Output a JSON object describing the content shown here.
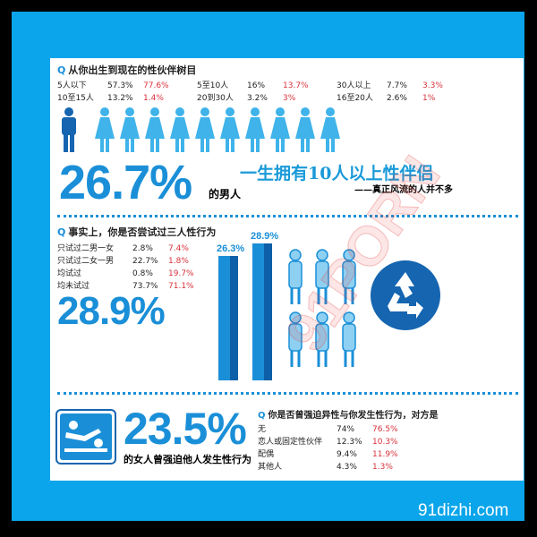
{
  "q1": {
    "title": "从你出生到现在的性伙伴树目",
    "q_mark": "Q",
    "rows": [
      [
        [
          "5人以下",
          "57.3%",
          "77.6%"
        ],
        [
          "5至10人",
          "16%",
          "13.7%"
        ],
        [
          "30人以上",
          "7.7%",
          "3.3%"
        ]
      ],
      [
        [
          "10至15人",
          "13.2%",
          "1.4%"
        ],
        [
          "20到30人",
          "3.2%",
          "3%"
        ],
        [
          "16至20人",
          "2.6%",
          "1%"
        ]
      ]
    ]
  },
  "headline1": {
    "value": "26.7%",
    "suffix": "的男人",
    "slogan": "一生拥有10人以上性伴侣",
    "subline": "——真正风流的人并不多"
  },
  "q2": {
    "title": "事实上，你是否尝试过三人性行为",
    "q_mark": "Q",
    "rows": [
      [
        "只试过二男一女",
        "2.8%",
        "7.4%"
      ],
      [
        "只试过二女一男",
        "22.7%",
        "1.8%"
      ],
      [
        "均试过",
        "0.8%",
        "19.7%"
      ],
      [
        "均未试过",
        "73.7%",
        "71.1%"
      ]
    ]
  },
  "headline2": {
    "value": "28.9%"
  },
  "bars": [
    {
      "label": "26.3%",
      "value": 26.3
    },
    {
      "label": "28.9%",
      "value": 28.9
    }
  ],
  "q3": {
    "title": "你是否曾强迫异性与你发生性行为，对方是",
    "q_mark": "Q",
    "rows": [
      [
        "无",
        "74%",
        "76.5%"
      ],
      [
        "恋人或固定性伙伴",
        "12.3%",
        "10.3%"
      ],
      [
        "配偶",
        "9.4%",
        "11.9%"
      ],
      [
        "其他人",
        "4.3%",
        "1.3%"
      ]
    ]
  },
  "headline3": {
    "value": "23.5%",
    "subline": "的女人曾强迫他人发生性行为"
  },
  "watermark": "91PORN",
  "footer": {
    "site": "91dizhi.com"
  },
  "colors": {
    "frame": "#0aa5ea",
    "accent": "#1a8fd8",
    "dark": "#1565b0",
    "red": "#d8323a"
  }
}
